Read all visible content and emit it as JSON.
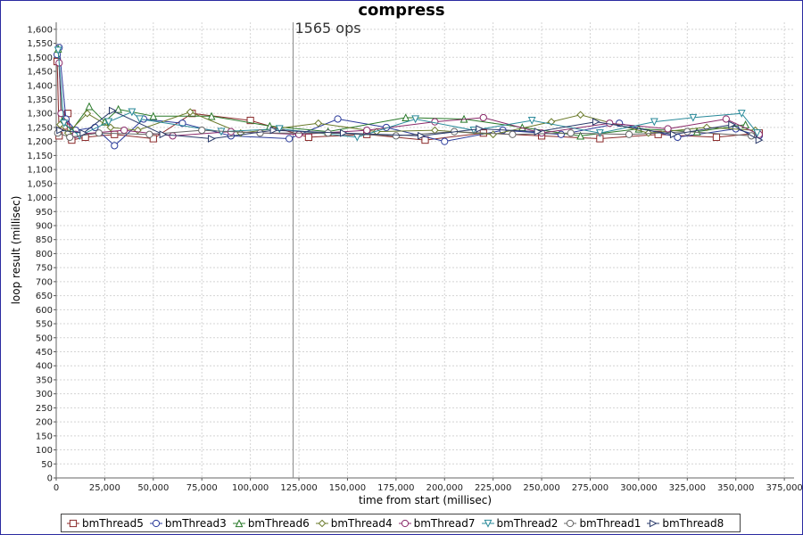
{
  "chart_data": {
    "type": "scatter",
    "title": "compress",
    "xlabel": "time from start (millisec)",
    "ylabel": "loop result (millisec)",
    "xlim": [
      0,
      380000
    ],
    "ylim": [
      0,
      1625
    ],
    "x_ticks": [
      0,
      25000,
      50000,
      75000,
      100000,
      125000,
      150000,
      175000,
      200000,
      225000,
      250000,
      275000,
      300000,
      325000,
      350000,
      375000
    ],
    "x_tick_labels": [
      "0",
      "25,000",
      "50,000",
      "75,000",
      "100,000",
      "125,000",
      "150,000",
      "175,000",
      "200,000",
      "225,000",
      "250,000",
      "275,000",
      "300,000",
      "325,000",
      "350,000",
      "375,000"
    ],
    "y_ticks": [
      0,
      50,
      100,
      150,
      200,
      250,
      300,
      350,
      400,
      450,
      500,
      550,
      600,
      650,
      700,
      750,
      800,
      850,
      900,
      950,
      1000,
      1050,
      1100,
      1150,
      1200,
      1250,
      1300,
      1350,
      1400,
      1450,
      1500,
      1550,
      1600
    ],
    "y_tick_labels": [
      "0",
      "50",
      "100",
      "150",
      "200",
      "250",
      "300",
      "350",
      "400",
      "450",
      "500",
      "550",
      "600",
      "650",
      "700",
      "750",
      "800",
      "850",
      "900",
      "950",
      "1,000",
      "1,050",
      "1,100",
      "1,150",
      "1,200",
      "1,250",
      "1,300",
      "1,350",
      "1,400",
      "1,450",
      "1,500",
      "1,550",
      "1,600"
    ],
    "grid": true,
    "legend_position": "bottom",
    "marker_line": {
      "x": 122000,
      "label": "1565 ops"
    },
    "series": [
      {
        "name": "bmThread5",
        "marker": "square",
        "color": "#8b2a2a",
        "x": [
          500,
          1500,
          4000,
          6000,
          8000,
          15000,
          30000,
          50000,
          70000,
          100000,
          130000,
          160000,
          190000,
          220000,
          250000,
          280000,
          310000,
          340000,
          362000
        ],
        "y": [
          1485,
          1220,
          1255,
          1300,
          1205,
          1215,
          1225,
          1210,
          1300,
          1275,
          1215,
          1225,
          1205,
          1230,
          1220,
          1210,
          1225,
          1215,
          1230
        ]
      },
      {
        "name": "bmThread3",
        "marker": "circle",
        "color": "#2a3a9a",
        "x": [
          500,
          1500,
          5000,
          10000,
          20000,
          30000,
          45000,
          65000,
          90000,
          120000,
          145000,
          170000,
          200000,
          230000,
          260000,
          290000,
          320000,
          350000,
          362000
        ],
        "y": [
          1510,
          1535,
          1280,
          1240,
          1250,
          1185,
          1280,
          1265,
          1220,
          1210,
          1280,
          1250,
          1200,
          1240,
          1225,
          1265,
          1215,
          1245,
          1220
        ]
      },
      {
        "name": "bmThread6",
        "marker": "triangle-up",
        "color": "#2a7a2a",
        "x": [
          1000,
          3000,
          8000,
          17000,
          25000,
          32000,
          50000,
          80000,
          110000,
          140000,
          180000,
          210000,
          240000,
          270000,
          300000,
          330000,
          355000
        ],
        "y": [
          1530,
          1270,
          1240,
          1325,
          1270,
          1315,
          1290,
          1290,
          1255,
          1235,
          1285,
          1280,
          1250,
          1220,
          1245,
          1235,
          1260
        ]
      },
      {
        "name": "bmThread4",
        "marker": "diamond",
        "color": "#6a7a2a",
        "x": [
          2000,
          6000,
          16000,
          28000,
          42000,
          69000,
          95000,
          135000,
          165000,
          195000,
          225000,
          255000,
          270000,
          305000,
          335000,
          360000
        ],
        "y": [
          1260,
          1230,
          1300,
          1250,
          1240,
          1305,
          1230,
          1265,
          1235,
          1240,
          1225,
          1270,
          1295,
          1230,
          1250,
          1240
        ]
      },
      {
        "name": "bmThread7",
        "marker": "circle",
        "color": "#8a2a6a",
        "x": [
          1500,
          2500,
          10000,
          35000,
          60000,
          90000,
          125000,
          160000,
          195000,
          220000,
          250000,
          285000,
          315000,
          345000,
          362000
        ],
        "y": [
          1480,
          1300,
          1225,
          1240,
          1220,
          1235,
          1225,
          1240,
          1270,
          1285,
          1230,
          1265,
          1245,
          1280,
          1225
        ]
      },
      {
        "name": "bmThread2",
        "marker": "triangle-down",
        "color": "#2a8a9a",
        "x": [
          1000,
          4000,
          12000,
          27000,
          39000,
          43000,
          85000,
          115000,
          155000,
          185000,
          215000,
          245000,
          280000,
          308000,
          328000,
          353000,
          361000
        ],
        "y": [
          1525,
          1265,
          1220,
          1270,
          1305,
          1280,
          1235,
          1245,
          1215,
          1280,
          1240,
          1275,
          1230,
          1270,
          1285,
          1300,
          1230
        ]
      },
      {
        "name": "bmThread1",
        "marker": "circle",
        "color": "#666666",
        "x": [
          800,
          7000,
          22000,
          48000,
          75000,
          105000,
          140000,
          175000,
          205000,
          235000,
          265000,
          295000,
          325000,
          358000
        ],
        "y": [
          1230,
          1215,
          1230,
          1225,
          1240,
          1230,
          1230,
          1220,
          1235,
          1225,
          1230,
          1225,
          1235,
          1220
        ]
      },
      {
        "name": "bmThread8",
        "marker": "triangle-right",
        "color": "#2a3a6a",
        "x": [
          2000,
          14000,
          29000,
          55000,
          80000,
          112000,
          148000,
          188000,
          218000,
          248000,
          278000,
          318000,
          348000,
          362000
        ],
        "y": [
          1240,
          1230,
          1310,
          1225,
          1210,
          1240,
          1230,
          1220,
          1245,
          1235,
          1270,
          1225,
          1260,
          1205
        ]
      }
    ]
  }
}
